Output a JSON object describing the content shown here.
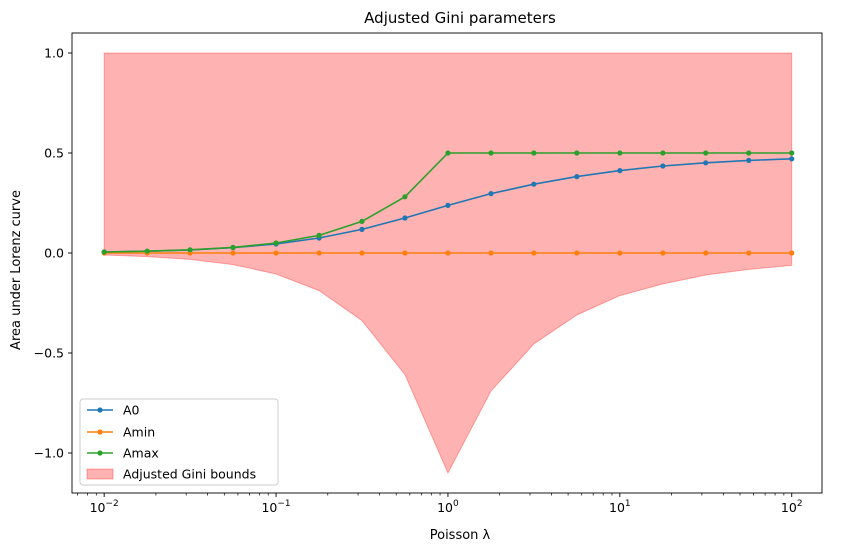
{
  "chart_data": {
    "type": "line",
    "title": "Adjusted Gini parameters",
    "xlabel": "Poisson λ",
    "ylabel": "Area under Lorenz curve",
    "xscale": "log",
    "xlim": [
      0.0065,
      150
    ],
    "ylim": [
      -1.2,
      1.1
    ],
    "yticks": [
      1.0,
      0.5,
      0.0,
      -0.5,
      -1.0
    ],
    "ytick_labels": [
      "1.0",
      "0.5",
      "0.0",
      "−0.5",
      "−1.0"
    ],
    "xticks": [
      0.01,
      0.1,
      1,
      10,
      100
    ],
    "xtick_labels": [
      {
        "base": "10",
        "exp": "−2"
      },
      {
        "base": "10",
        "exp": "−1"
      },
      {
        "base": "10",
        "exp": "0"
      },
      {
        "base": "10",
        "exp": "1"
      },
      {
        "base": "10",
        "exp": "2"
      }
    ],
    "grid": false,
    "legend_position": "lower-left",
    "x": [
      0.01,
      0.0178,
      0.0316,
      0.0562,
      0.1,
      0.178,
      0.316,
      0.562,
      1,
      1.78,
      3.16,
      5.62,
      10,
      17.8,
      31.6,
      56.2,
      100
    ],
    "series": [
      {
        "name": "A0",
        "color": "#1f77b4",
        "values": [
          0.005,
          0.009,
          0.015,
          0.027,
          0.045,
          0.075,
          0.118,
          0.175,
          0.238,
          0.297,
          0.344,
          0.382,
          0.412,
          0.435,
          0.451,
          0.463,
          0.471
        ]
      },
      {
        "name": "Amin",
        "color": "#ff7f0e",
        "values": [
          0.0,
          0.0,
          0.0,
          0.0,
          0.0,
          0.0,
          0.0,
          0.0,
          0.0,
          0.0,
          0.0,
          0.0,
          0.0,
          0.0,
          0.0,
          0.0,
          0.0
        ]
      },
      {
        "name": "Amax",
        "color": "#2ca02c",
        "values": [
          0.005,
          0.009,
          0.016,
          0.028,
          0.05,
          0.088,
          0.158,
          0.281,
          0.5,
          0.5,
          0.5,
          0.5,
          0.5,
          0.5,
          0.5,
          0.5,
          0.5
        ]
      }
    ],
    "band": {
      "name": "Adjusted Gini bounds",
      "color": "#ff0000",
      "upper": [
        1.0,
        1.0,
        1.0,
        1.0,
        1.0,
        1.0,
        1.0,
        1.0,
        1.0,
        1.0,
        1.0,
        1.0,
        1.0,
        1.0,
        1.0,
        1.0,
        1.0
      ],
      "lower": [
        -0.01,
        -0.018,
        -0.032,
        -0.058,
        -0.105,
        -0.188,
        -0.338,
        -0.608,
        -1.1,
        -0.69,
        -0.455,
        -0.31,
        -0.213,
        -0.155,
        -0.11,
        -0.082,
        -0.062
      ]
    }
  }
}
